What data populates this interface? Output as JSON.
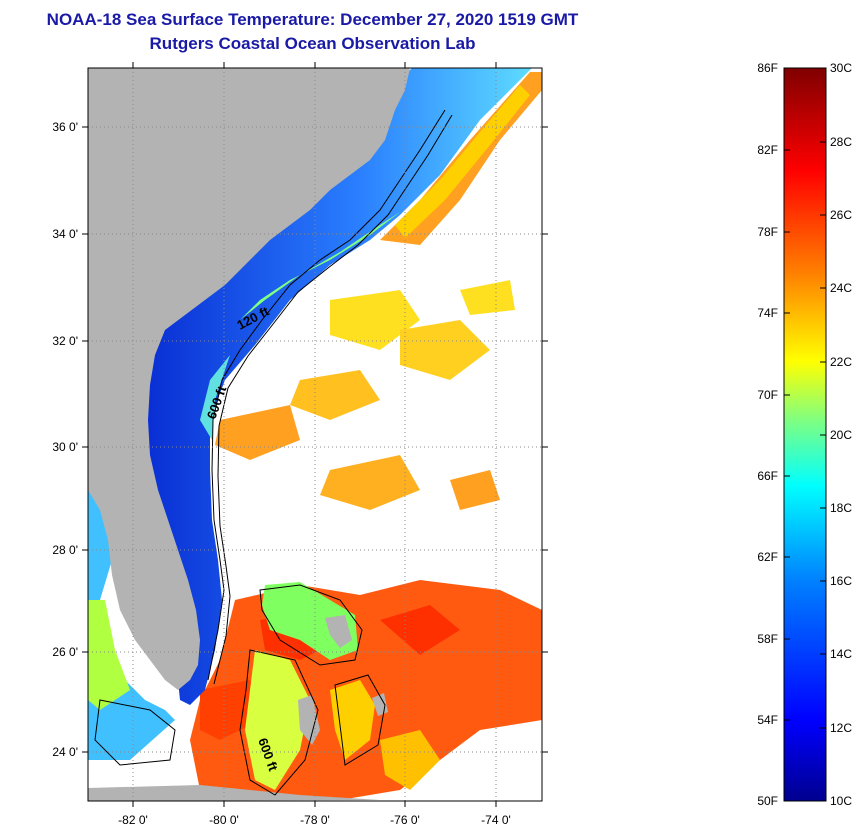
{
  "title": "NOAA-18 Sea Surface Temperature:  December 27, 2020 1519 GMT",
  "subtitle": "Rutgers Coastal Ocean Observation Lab",
  "map": {
    "lat_labels": [
      "36 0'",
      "34 0'",
      "32 0'",
      "30 0'",
      "28 0'",
      "26 0'",
      "24 0'"
    ],
    "lon_labels": [
      "-82 0'",
      "-80 0'",
      "-78 0'",
      "-76 0'",
      "-74 0'"
    ],
    "contour_labels": [
      "120 ft",
      "600 ft",
      "600 ft"
    ]
  },
  "colorbar": {
    "f_labels": [
      "86F",
      "82F",
      "78F",
      "74F",
      "70F",
      "66F",
      "62F",
      "58F",
      "54F",
      "50F"
    ],
    "c_labels": [
      "30C",
      "28C",
      "26C",
      "24C",
      "22C",
      "20C",
      "18C",
      "16C",
      "14C",
      "12C",
      "10C"
    ],
    "colors": [
      "#00008f",
      "#0000ff",
      "#0080ff",
      "#00ffff",
      "#80ff80",
      "#ffff00",
      "#ff8000",
      "#ff0000",
      "#800000"
    ]
  },
  "colors": {
    "land": "#b3b3b3",
    "title": "#1a1aa6",
    "ocean_cloud": "#ffffff"
  }
}
